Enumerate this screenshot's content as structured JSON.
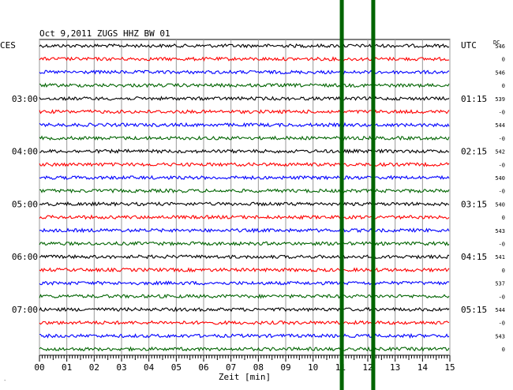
{
  "chart_data": {
    "type": "line",
    "title": "Oct 9,2011   ZUGS HHZ BW 01",
    "xlabel": "Zeit [min]",
    "xlim": [
      0,
      15
    ],
    "x_ticks": [
      "00",
      "01",
      "02",
      "03",
      "04",
      "05",
      "06",
      "07",
      "08",
      "09",
      "10",
      "11",
      "12",
      "13",
      "14",
      "15"
    ],
    "left_axis_label": "CES",
    "right_axis_label": "UTC",
    "dc_label": "DC",
    "left_time_labels": [
      "03:00",
      "04:00",
      "05:00",
      "06:00",
      "07:00"
    ],
    "right_time_labels": [
      "01:15",
      "02:15",
      "03:15",
      "04:15",
      "05:15"
    ],
    "time_label_rows": [
      4,
      8,
      12,
      16,
      20
    ],
    "dc_values": [
      "546",
      "0",
      "546",
      "0",
      "539",
      "-0",
      "544",
      "-0",
      "542",
      "-0",
      "540",
      "-0",
      "540",
      "0",
      "543",
      "-0",
      "541",
      "0",
      "537",
      "-0",
      "544",
      "-0",
      "543",
      "0"
    ],
    "trace_count": 24,
    "trace_colors": [
      "#000000",
      "#ff0000",
      "#0000ff",
      "#006400"
    ],
    "event_markers_min": [
      11.05,
      12.2
    ],
    "event_color": "#006400",
    "corner_mark": "‵"
  }
}
